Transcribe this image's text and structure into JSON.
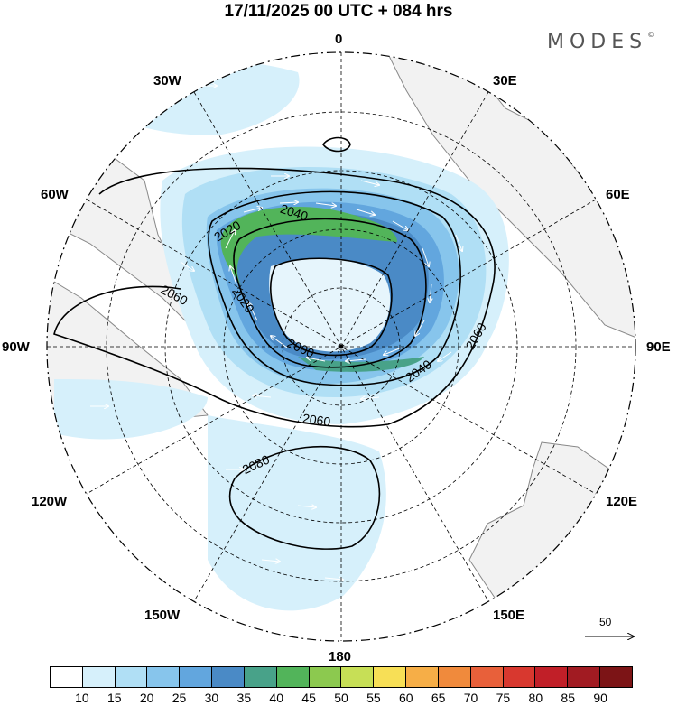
{
  "title": "17/11/2025  00 UTC  + 084 hrs",
  "brand": "MODES",
  "brand_mark": "©",
  "meridian_labels": {
    "m0": "0",
    "m30e": "30E",
    "m60e": "60E",
    "m90e": "90E",
    "m120e": "120E",
    "m150e": "150E",
    "m180": "180",
    "m150w": "150W",
    "m120w": "120W",
    "m90w": "90W",
    "m60w": "60W",
    "m30w": "30W"
  },
  "contour_labels": [
    "2000",
    "2020",
    "2020",
    "2040",
    "2040",
    "2060",
    "2060",
    "2060",
    "2080"
  ],
  "reference_vector": "50",
  "colorbar": {
    "ticks": [
      "10",
      "15",
      "20",
      "25",
      "30",
      "35",
      "40",
      "45",
      "50",
      "55",
      "60",
      "65",
      "70",
      "75",
      "80",
      "85",
      "90"
    ],
    "colors": [
      "#ffffff",
      "#d6f0fb",
      "#b0dff5",
      "#87c5ec",
      "#62a6de",
      "#4a8ac6",
      "#48a289",
      "#52b45a",
      "#8cc94f",
      "#c7df56",
      "#f7df56",
      "#f6ae47",
      "#f08a3c",
      "#e8603a",
      "#d8382f",
      "#c11f28",
      "#a11b22",
      "#7c1416"
    ]
  },
  "colors": {
    "land": "#f2f2f2",
    "coast": "#888888",
    "grid": "#000000",
    "contour": "#000000",
    "arrow": "#ffffff"
  }
}
